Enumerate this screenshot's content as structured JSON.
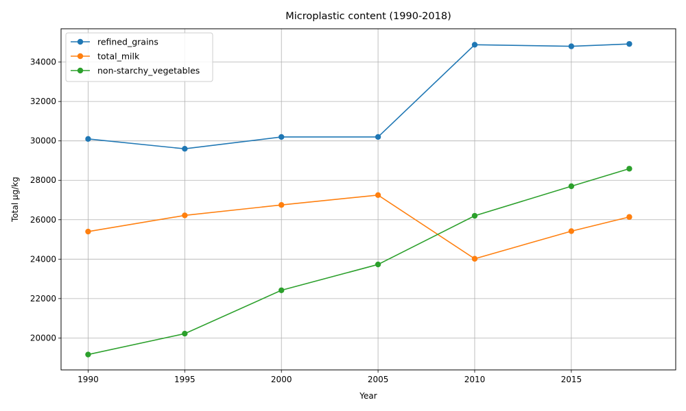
{
  "chart_data": {
    "type": "line",
    "title": "Microplastic content (1990-2018)",
    "xlabel": "Year",
    "ylabel": "Total µg/kg",
    "x": [
      1990,
      1995,
      2000,
      2005,
      2010,
      2015,
      2018
    ],
    "xlim": [
      1988.6,
      2020.4
    ],
    "ylim": [
      18380,
      35690
    ],
    "xticks": [
      1990,
      1995,
      2000,
      2005,
      2010,
      2015
    ],
    "yticks": [
      20000,
      22000,
      24000,
      26000,
      28000,
      30000,
      32000,
      34000
    ],
    "grid": true,
    "legend_position": "upper-left",
    "series": [
      {
        "name": "refined_grains",
        "color": "#1f77b4",
        "values": [
          30100,
          29600,
          30200,
          30200,
          34880,
          34800,
          34920
        ]
      },
      {
        "name": "total_milk",
        "color": "#ff7f0e",
        "values": [
          25400,
          26220,
          26750,
          27250,
          24020,
          25420,
          26140
        ]
      },
      {
        "name": "non-starchy_vegetables",
        "color": "#2ca02c",
        "values": [
          19160,
          20220,
          22420,
          23730,
          26200,
          27700,
          28590
        ]
      }
    ]
  }
}
